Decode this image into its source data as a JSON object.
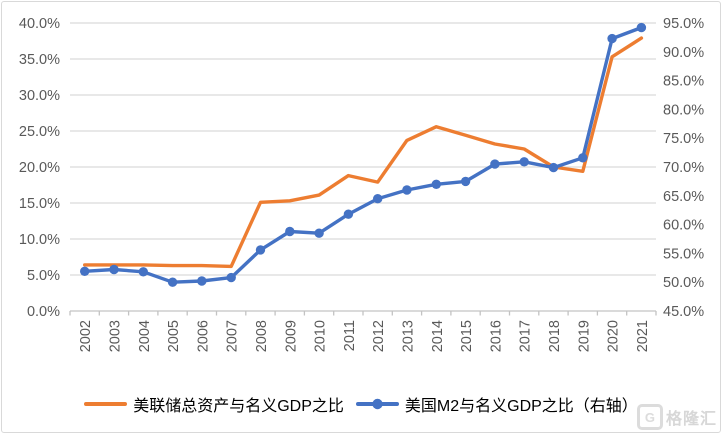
{
  "chart_data": {
    "type": "line",
    "title": "",
    "x": [
      "2002",
      "2003",
      "2004",
      "2005",
      "2006",
      "2007",
      "2008",
      "2009",
      "2010",
      "2011",
      "2012",
      "2013",
      "2014",
      "2015",
      "2016",
      "2017",
      "2018",
      "2019",
      "2020",
      "2021"
    ],
    "series": [
      {
        "name": "美联储总资产与名义GDP之比",
        "axis": "left",
        "color": "#ED7D31",
        "marker": "none",
        "values": [
          6.4,
          6.4,
          6.4,
          6.3,
          6.3,
          6.2,
          15.1,
          15.3,
          16.1,
          18.8,
          17.9,
          23.7,
          25.6,
          24.4,
          23.2,
          22.5,
          20.0,
          19.4,
          35.3,
          37.9
        ]
      },
      {
        "name": "美国M2与名义GDP之比（右轴）",
        "axis": "right",
        "color": "#4472C4",
        "marker": "circle",
        "values": [
          51.9,
          52.2,
          51.8,
          50.0,
          50.2,
          50.8,
          55.6,
          58.8,
          58.5,
          61.8,
          64.5,
          66.0,
          67.0,
          67.5,
          70.5,
          70.9,
          69.9,
          71.6,
          92.3,
          94.2
        ]
      }
    ],
    "left_axis": {
      "min": 0,
      "max": 40,
      "step": 5,
      "ticks": [
        "40.0%",
        "35.0%",
        "30.0%",
        "25.0%",
        "20.0%",
        "15.0%",
        "10.0%",
        "5.0%",
        "0.0%"
      ]
    },
    "right_axis": {
      "min": 45,
      "max": 95,
      "step": 5,
      "ticks": [
        "95.0%",
        "90.0%",
        "85.0%",
        "80.0%",
        "75.0%",
        "70.0%",
        "65.0%",
        "60.0%",
        "55.0%",
        "50.0%",
        "45.0%"
      ]
    },
    "grid": true,
    "legend_position": "bottom"
  },
  "watermark": {
    "logo_letter": "G",
    "text": "格隆汇"
  },
  "colors": {
    "grid": "#dadada",
    "axis_line": "#c3c3c3",
    "tick_text": "#595959",
    "legend_text": "#000000",
    "background": "#ffffff",
    "border": "#d9d9d9"
  }
}
